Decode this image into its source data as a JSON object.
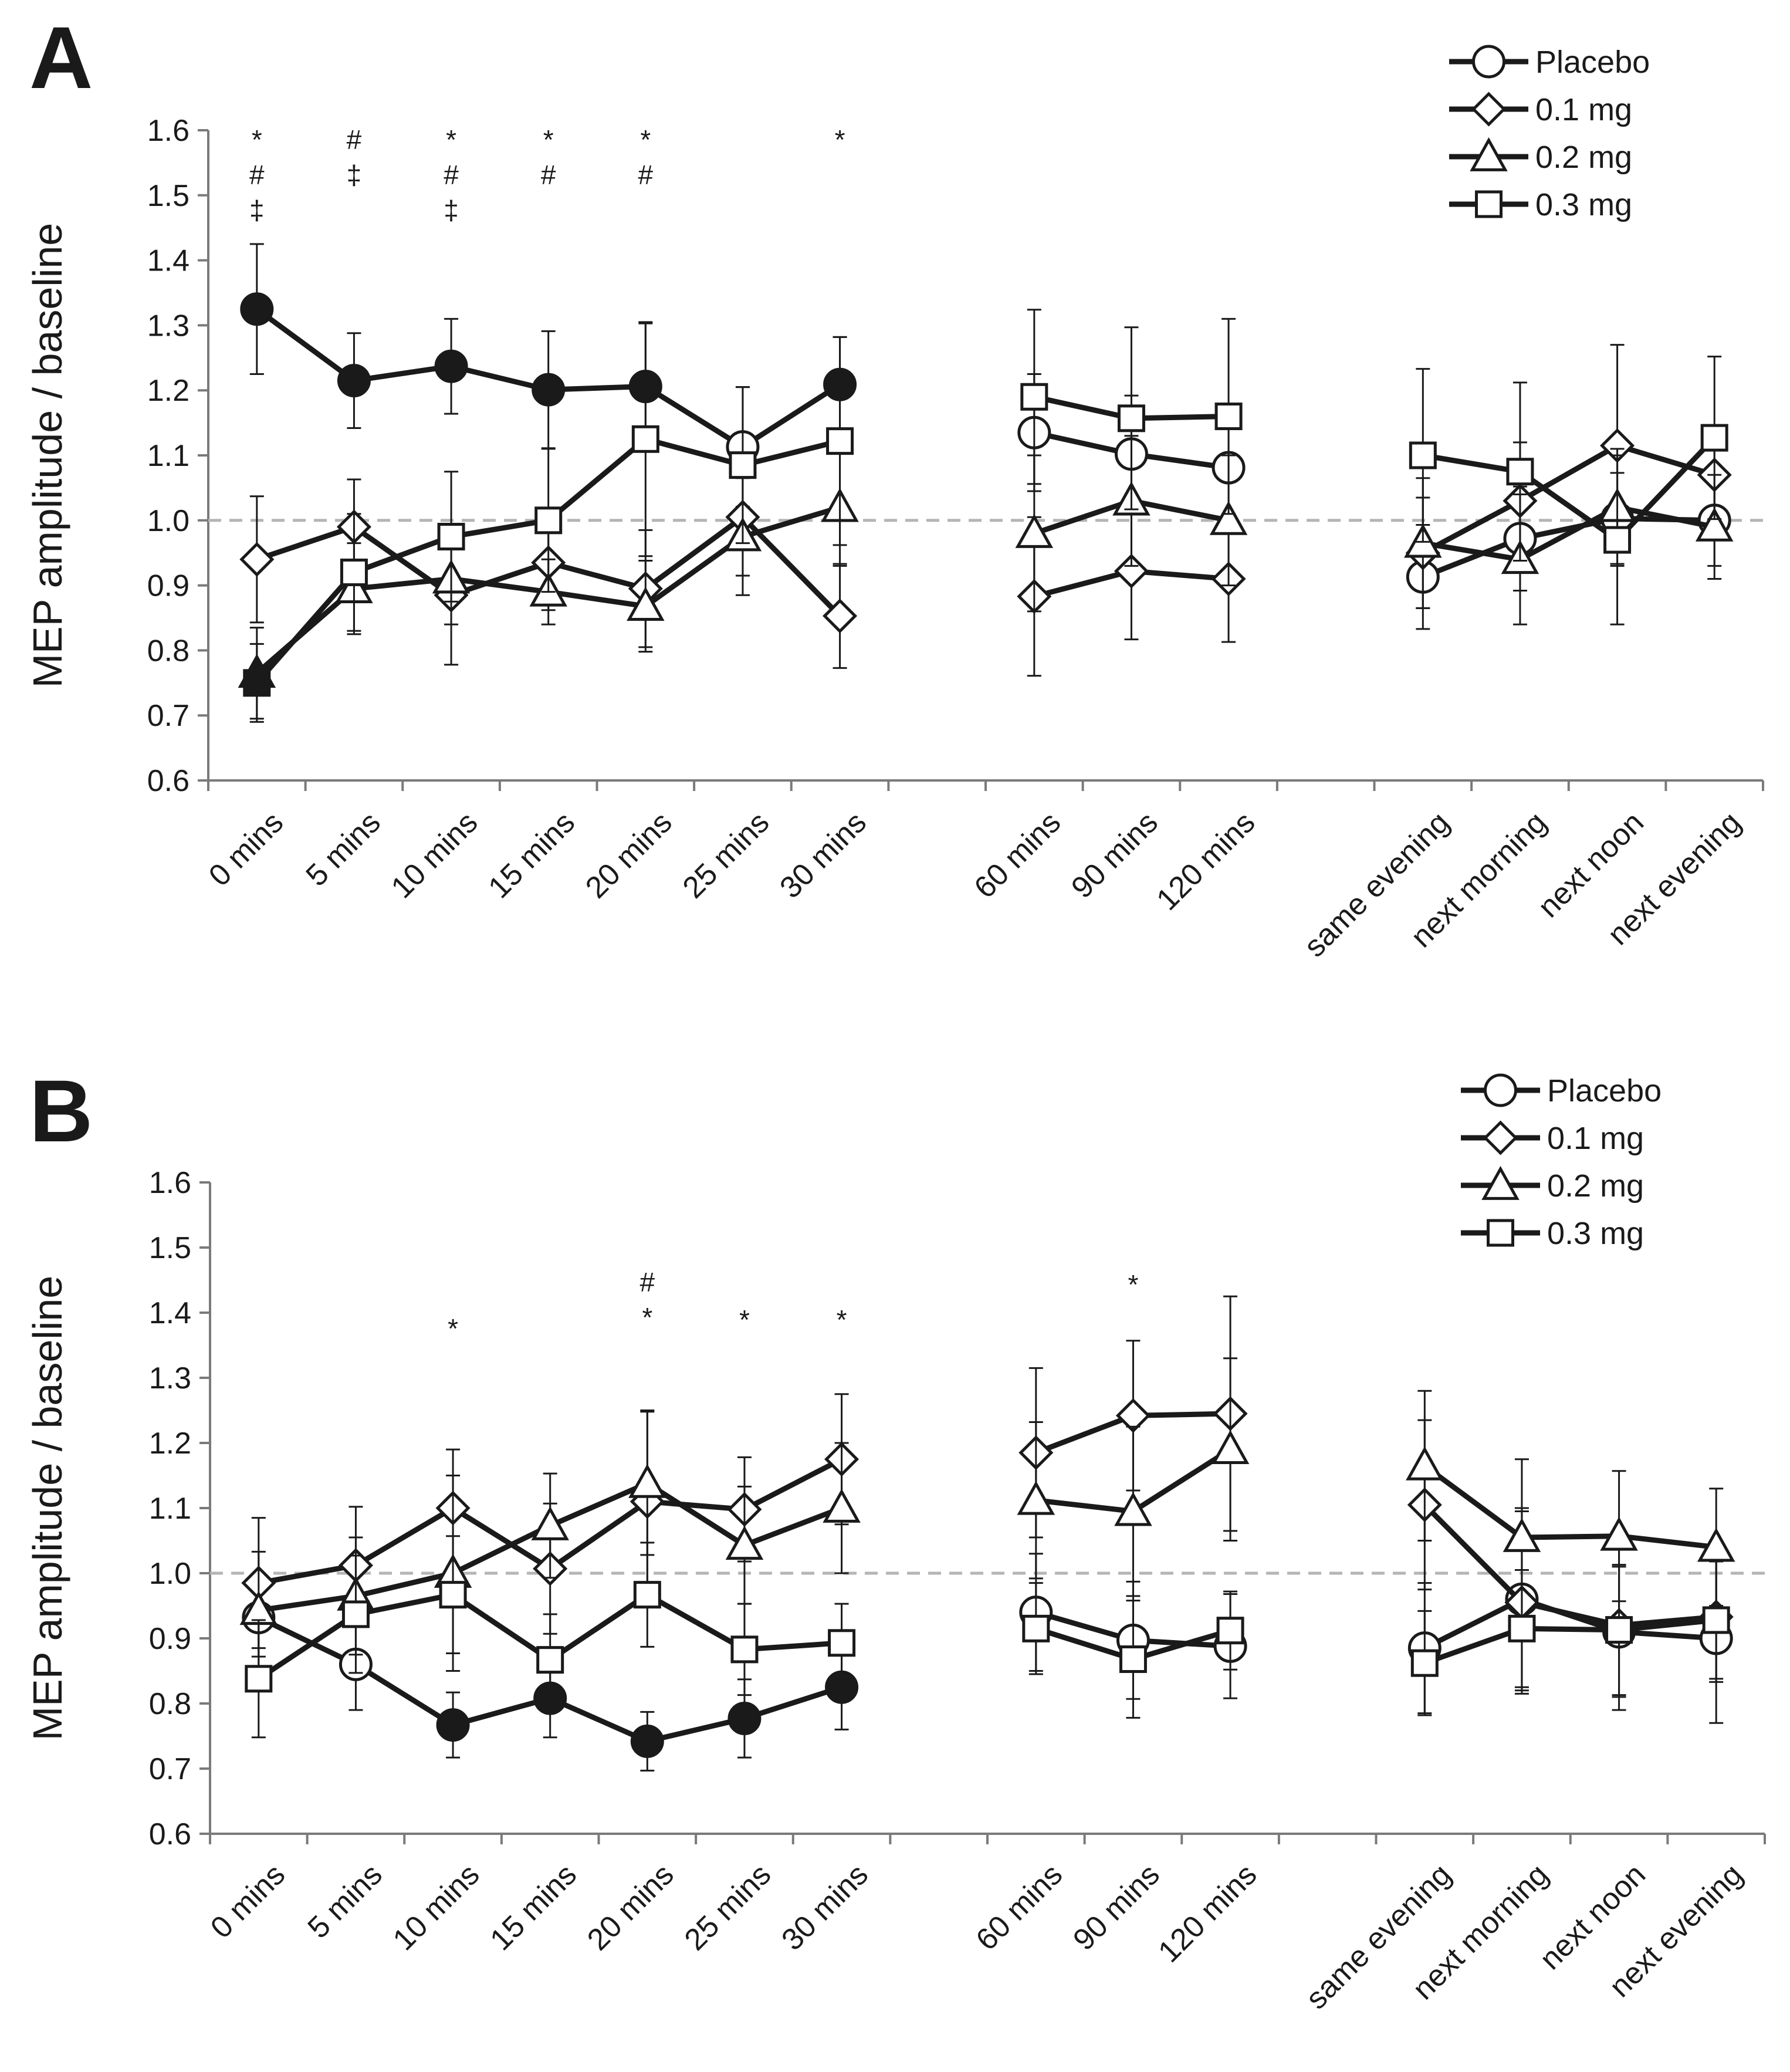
{
  "chart_data": [
    {
      "panel": "A",
      "type": "line",
      "title": "",
      "ylabel": "MEP amplitude / baseline",
      "ylim": [
        0.6,
        1.6
      ],
      "yticks": [
        "0.6",
        "0.7",
        "0.8",
        "0.9",
        "1.0",
        "1.1",
        "1.2",
        "1.3",
        "1.4",
        "1.5",
        "1.6"
      ],
      "reference_line": 1.0,
      "categories": [
        "0 mins",
        "5 mins",
        "10 mins",
        "15 mins",
        "20 mins",
        "25 mins",
        "30 mins",
        "",
        "60 mins",
        "90 mins",
        "120 mins",
        "",
        "same evening",
        "next morning",
        "next noon",
        "next evening"
      ],
      "groups": [
        [
          0,
          6
        ],
        [
          8,
          10
        ],
        [
          12,
          15
        ]
      ],
      "legend_position": "top-right",
      "series": [
        {
          "name": "Placebo",
          "marker": "circle",
          "values": [
            1.325,
            1.215,
            1.237,
            1.201,
            1.206,
            1.113,
            1.209,
            null,
            1.135,
            1.102,
            1.081,
            null,
            0.913,
            0.972,
            1.003,
            1.0
          ],
          "errors": [
            0.1,
            0.073,
            0.073,
            0.09,
            0.097,
            0.092,
            0.073,
            null,
            0.09,
            0.09,
            0.09,
            null,
            0.08,
            0.08,
            0.07,
            0.07
          ],
          "filled": [
            true,
            true,
            true,
            true,
            true,
            false,
            true,
            null,
            false,
            false,
            false,
            null,
            false,
            false,
            false,
            false
          ]
        },
        {
          "name": "0.1 mg",
          "marker": "diamond",
          "values": [
            0.94,
            0.99,
            0.885,
            0.935,
            0.895,
            1.005,
            0.853,
            null,
            0.883,
            0.922,
            0.91,
            null,
            0.95,
            1.03,
            1.115,
            1.07
          ],
          "errors": [
            0.097,
            0.073,
            0.107,
            0.073,
            0.09,
            0.09,
            0.08,
            null,
            0.122,
            0.105,
            0.097,
            null,
            0.085,
            0.09,
            0.155,
            0.07
          ],
          "filled": [
            false,
            false,
            false,
            false,
            false,
            false,
            false,
            null,
            false,
            false,
            false,
            null,
            false,
            false,
            false,
            false
          ]
        },
        {
          "name": "0.2 mg",
          "marker": "triangle",
          "values": [
            0.765,
            0.895,
            0.91,
            0.89,
            0.868,
            0.975,
            1.02,
            null,
            0.98,
            1.03,
            1.0,
            null,
            0.965,
            0.94,
            1.02,
            0.99
          ],
          "errors": [
            0.07,
            0.07,
            0.07,
            0.05,
            0.07,
            0.09,
            0.09,
            null,
            0.12,
            0.1,
            0.1,
            null,
            0.1,
            0.1,
            0.09,
            0.08
          ],
          "filled": [
            true,
            false,
            false,
            false,
            false,
            false,
            false,
            null,
            false,
            false,
            false,
            null,
            false,
            false,
            false,
            false
          ]
        },
        {
          "name": "0.3 mg",
          "marker": "square",
          "values": [
            0.75,
            0.92,
            0.975,
            1.0,
            1.125,
            1.085,
            1.122,
            null,
            1.19,
            1.157,
            1.16,
            null,
            1.1,
            1.075,
            0.97,
            1.127
          ],
          "errors": [
            0.06,
            0.09,
            0.1,
            0.11,
            0.18,
            0.12,
            0.16,
            null,
            0.134,
            0.14,
            0.15,
            null,
            0.133,
            0.137,
            0.13,
            0.125
          ],
          "filled": [
            true,
            false,
            false,
            false,
            false,
            false,
            false,
            null,
            false,
            false,
            false,
            null,
            false,
            false,
            false,
            false
          ]
        }
      ],
      "annotations": [
        {
          "category": "0 mins",
          "lines": [
            "*",
            "#",
            "‡"
          ]
        },
        {
          "category": "5 mins",
          "lines": [
            "#",
            "‡"
          ]
        },
        {
          "category": "10 mins",
          "lines": [
            "*",
            "#",
            "‡"
          ]
        },
        {
          "category": "15 mins",
          "lines": [
            "*",
            "#"
          ]
        },
        {
          "category": "20 mins",
          "lines": [
            "*",
            "#"
          ]
        },
        {
          "category": "30 mins",
          "lines": [
            "*"
          ]
        }
      ]
    },
    {
      "panel": "B",
      "type": "line",
      "title": "",
      "ylabel": "MEP amplitude / baseline",
      "ylim": [
        0.6,
        1.6
      ],
      "yticks": [
        "0.6",
        "0.7",
        "0.8",
        "0.9",
        "1.0",
        "1.1",
        "1.2",
        "1.3",
        "1.4",
        "1.5",
        "1.6"
      ],
      "reference_line": 1.0,
      "categories": [
        "0 mins",
        "5 mins",
        "10 mins",
        "15 mins",
        "20 mins",
        "25 mins",
        "30 mins",
        "",
        "60 mins",
        "90 mins",
        "120 mins",
        "",
        "same evening",
        "next morning",
        "next noon",
        "next evening"
      ],
      "groups": [
        [
          0,
          6
        ],
        [
          8,
          10
        ],
        [
          12,
          15
        ]
      ],
      "legend_position": "top-right",
      "series": [
        {
          "name": "Placebo",
          "marker": "circle",
          "values": [
            0.932,
            0.86,
            0.767,
            0.808,
            0.742,
            0.777,
            0.825,
            null,
            0.94,
            0.897,
            0.888,
            null,
            0.885,
            0.96,
            0.91,
            0.9
          ],
          "errors": [
            0.06,
            0.07,
            0.05,
            0.06,
            0.045,
            0.06,
            0.065,
            null,
            0.09,
            0.09,
            0.08,
            null,
            0.1,
            0.14,
            0.1,
            0.13
          ],
          "filled": [
            false,
            false,
            true,
            true,
            true,
            true,
            true,
            null,
            false,
            false,
            false,
            null,
            false,
            false,
            false,
            false
          ]
        },
        {
          "name": "0.1 mg",
          "marker": "diamond",
          "values": [
            0.985,
            1.012,
            1.1,
            1.007,
            1.11,
            1.098,
            1.175,
            null,
            1.185,
            1.242,
            1.245,
            null,
            1.105,
            0.955,
            0.92,
            0.933
          ],
          "errors": [
            0.1,
            0.09,
            0.09,
            0.1,
            0.14,
            0.08,
            0.1,
            null,
            0.13,
            0.115,
            0.18,
            null,
            0.13,
            0.14,
            0.13,
            0.1
          ],
          "filled": [
            false,
            false,
            false,
            false,
            false,
            false,
            false,
            null,
            false,
            false,
            false,
            null,
            false,
            false,
            false,
            false
          ]
        },
        {
          "name": "0.2 mg",
          "marker": "triangle",
          "values": [
            0.943,
            0.965,
            1.0,
            1.073,
            1.138,
            1.043,
            1.1,
            null,
            1.112,
            1.095,
            1.19,
            null,
            1.165,
            1.055,
            1.057,
            1.04
          ],
          "errors": [
            0.09,
            0.09,
            0.15,
            0.08,
            0.11,
            0.09,
            0.1,
            null,
            0.12,
            0.13,
            0.14,
            null,
            0.115,
            0.12,
            0.1,
            0.09
          ],
          "filled": [
            false,
            false,
            false,
            false,
            false,
            false,
            false,
            null,
            false,
            false,
            false,
            null,
            false,
            false,
            false,
            false
          ]
        },
        {
          "name": "0.3 mg",
          "marker": "square",
          "values": [
            0.838,
            0.937,
            0.967,
            0.867,
            0.967,
            0.883,
            0.893,
            null,
            0.915,
            0.868,
            0.912,
            null,
            0.862,
            0.915,
            0.913,
            0.928
          ],
          "errors": [
            0.09,
            0.09,
            0.09,
            0.07,
            0.08,
            0.07,
            0.06,
            null,
            0.07,
            0.09,
            0.06,
            null,
            0.08,
            0.09,
            0.1,
            0.09
          ],
          "filled": [
            false,
            false,
            false,
            false,
            false,
            false,
            false,
            null,
            false,
            false,
            false,
            null,
            false,
            false,
            false,
            false
          ]
        }
      ],
      "annotations": [
        {
          "category": "10 mins",
          "lines": [
            "*"
          ]
        },
        {
          "category": "20 mins",
          "lines": [
            "#",
            "*"
          ]
        },
        {
          "category": "25 mins",
          "lines": [
            "*"
          ]
        },
        {
          "category": "30 mins",
          "lines": [
            "*"
          ]
        },
        {
          "category": "90 mins",
          "lines": [
            "*"
          ]
        }
      ]
    }
  ]
}
